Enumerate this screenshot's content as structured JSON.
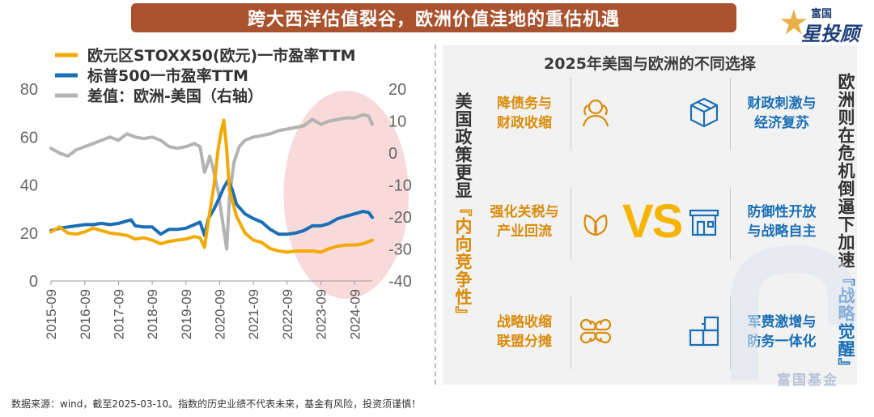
{
  "header": {
    "title": "跨大西洋估值裂谷，欧洲价值洼地的重估机遇"
  },
  "logo": {
    "line1": "富国",
    "line2": "星投顾"
  },
  "chart_data": {
    "type": "line",
    "x_ticks": [
      "2015-09",
      "2016-09",
      "2017-09",
      "2018-09",
      "2019-09",
      "2020-09",
      "2021-09",
      "2022-09",
      "2023-09",
      "2024-09"
    ],
    "x_range": [
      "2015-09-01",
      "2025-03-10"
    ],
    "y_left": {
      "ylim": [
        0,
        80
      ],
      "ticks": [
        0,
        20,
        40,
        60,
        80
      ]
    },
    "y_right": {
      "ylim": [
        -40,
        20
      ],
      "ticks": [
        -40,
        -30,
        -20,
        -10,
        0,
        10,
        20
      ]
    },
    "legend_position": "top-left",
    "grid": false,
    "series": [
      {
        "name": "欧元区STOXX50(欧元)一市盈率TTM",
        "axis": "left",
        "color": "#f4a900",
        "points": [
          [
            "2015-09-01",
            20.5
          ],
          [
            "2015-12-01",
            22.5
          ],
          [
            "2016-03-01",
            20
          ],
          [
            "2016-06-01",
            19.5
          ],
          [
            "2016-09-01",
            20.5
          ],
          [
            "2016-12-01",
            22
          ],
          [
            "2017-03-01",
            21
          ],
          [
            "2017-06-01",
            20
          ],
          [
            "2017-09-01",
            19.5
          ],
          [
            "2017-12-01",
            19
          ],
          [
            "2018-03-01",
            17.5
          ],
          [
            "2018-06-01",
            18
          ],
          [
            "2018-09-01",
            17
          ],
          [
            "2018-12-01",
            15.5
          ],
          [
            "2019-03-01",
            16.5
          ],
          [
            "2019-06-01",
            17
          ],
          [
            "2019-09-01",
            17.5
          ],
          [
            "2019-12-01",
            18.5
          ],
          [
            "2020-02-01",
            18
          ],
          [
            "2020-03-20",
            14
          ],
          [
            "2020-05-01",
            25
          ],
          [
            "2020-07-01",
            40
          ],
          [
            "2020-08-15",
            55
          ],
          [
            "2020-09-15",
            62
          ],
          [
            "2020-10-15",
            67
          ],
          [
            "2020-11-15",
            55
          ],
          [
            "2020-12-15",
            38
          ],
          [
            "2021-03-01",
            27
          ],
          [
            "2021-06-01",
            20
          ],
          [
            "2021-09-01",
            17
          ],
          [
            "2021-12-01",
            16
          ],
          [
            "2022-03-01",
            13.5
          ],
          [
            "2022-06-01",
            12.5
          ],
          [
            "2022-09-01",
            12
          ],
          [
            "2022-12-01",
            12.5
          ],
          [
            "2023-03-01",
            12.5
          ],
          [
            "2023-06-01",
            12.5
          ],
          [
            "2023-09-01",
            12
          ],
          [
            "2023-12-01",
            13.5
          ],
          [
            "2024-03-01",
            14.5
          ],
          [
            "2024-06-01",
            15
          ],
          [
            "2024-09-01",
            15
          ],
          [
            "2024-12-01",
            15.5
          ],
          [
            "2025-03-10",
            17
          ]
        ]
      },
      {
        "name": "标普500一市盈率TTM",
        "axis": "left",
        "color": "#1a6fb6",
        "points": [
          [
            "2015-09-01",
            21
          ],
          [
            "2015-12-01",
            22
          ],
          [
            "2016-03-01",
            22.5
          ],
          [
            "2016-06-01",
            23
          ],
          [
            "2016-09-01",
            23.5
          ],
          [
            "2016-12-01",
            23.5
          ],
          [
            "2017-03-01",
            24
          ],
          [
            "2017-06-01",
            23.5
          ],
          [
            "2017-09-01",
            24
          ],
          [
            "2017-12-01",
            25
          ],
          [
            "2018-01-15",
            25.5
          ],
          [
            "2018-03-01",
            23
          ],
          [
            "2018-06-01",
            22.5
          ],
          [
            "2018-09-01",
            22.5
          ],
          [
            "2018-12-01",
            19.5
          ],
          [
            "2019-03-01",
            21.5
          ],
          [
            "2019-06-01",
            21.5
          ],
          [
            "2019-09-01",
            22
          ],
          [
            "2019-12-01",
            23.5
          ],
          [
            "2020-02-01",
            24.5
          ],
          [
            "2020-03-20",
            19
          ],
          [
            "2020-05-01",
            26
          ],
          [
            "2020-07-01",
            30
          ],
          [
            "2020-09-01",
            35
          ],
          [
            "2020-10-15",
            39
          ],
          [
            "2020-12-01",
            42
          ],
          [
            "2021-01-15",
            38
          ],
          [
            "2021-03-01",
            32
          ],
          [
            "2021-06-01",
            28
          ],
          [
            "2021-09-01",
            26
          ],
          [
            "2021-12-01",
            24.5
          ],
          [
            "2022-03-01",
            21.5
          ],
          [
            "2022-06-01",
            19.5
          ],
          [
            "2022-09-01",
            19.5
          ],
          [
            "2022-12-01",
            20
          ],
          [
            "2023-03-01",
            21
          ],
          [
            "2023-06-01",
            23
          ],
          [
            "2023-09-01",
            23
          ],
          [
            "2023-12-01",
            24
          ],
          [
            "2024-03-01",
            26
          ],
          [
            "2024-06-01",
            27
          ],
          [
            "2024-09-01",
            28
          ],
          [
            "2024-12-01",
            29
          ],
          [
            "2025-02-01",
            28.5
          ],
          [
            "2025-03-10",
            26.5
          ]
        ]
      },
      {
        "name": "差值：欧洲-美国（右轴）",
        "axis": "right",
        "color": "#b3b3b3",
        "points": [
          [
            "2015-09-01",
            1.5
          ],
          [
            "2015-12-01",
            0
          ],
          [
            "2016-03-01",
            -1
          ],
          [
            "2016-06-01",
            1
          ],
          [
            "2016-09-01",
            2
          ],
          [
            "2016-12-01",
            3
          ],
          [
            "2017-03-01",
            4
          ],
          [
            "2017-06-01",
            5
          ],
          [
            "2017-09-01",
            4
          ],
          [
            "2017-12-01",
            6
          ],
          [
            "2018-03-01",
            5
          ],
          [
            "2018-06-01",
            4.5
          ],
          [
            "2018-09-01",
            5
          ],
          [
            "2018-12-01",
            4
          ],
          [
            "2019-03-01",
            2
          ],
          [
            "2019-06-01",
            1.5
          ],
          [
            "2019-09-01",
            2
          ],
          [
            "2019-12-01",
            3
          ],
          [
            "2020-02-01",
            2
          ],
          [
            "2020-03-20",
            -6
          ],
          [
            "2020-04-15",
            -4
          ],
          [
            "2020-05-15",
            -1
          ],
          [
            "2020-06-15",
            -4
          ],
          [
            "2020-07-15",
            -8
          ],
          [
            "2020-08-15",
            -12
          ],
          [
            "2020-09-15",
            -18
          ],
          [
            "2020-10-15",
            -24
          ],
          [
            "2020-11-15",
            -30
          ],
          [
            "2020-12-15",
            -14
          ],
          [
            "2021-02-01",
            -3
          ],
          [
            "2021-04-01",
            2
          ],
          [
            "2021-06-01",
            4
          ],
          [
            "2021-09-01",
            5
          ],
          [
            "2021-12-01",
            5.5
          ],
          [
            "2022-03-01",
            6
          ],
          [
            "2022-06-01",
            7
          ],
          [
            "2022-09-01",
            7.5
          ],
          [
            "2022-12-01",
            8
          ],
          [
            "2023-03-01",
            8.5
          ],
          [
            "2023-06-01",
            10.5
          ],
          [
            "2023-09-01",
            9
          ],
          [
            "2023-12-01",
            10
          ],
          [
            "2024-03-01",
            10.5
          ],
          [
            "2024-06-01",
            11
          ],
          [
            "2024-09-01",
            11
          ],
          [
            "2024-12-01",
            12
          ],
          [
            "2025-02-01",
            11.5
          ],
          [
            "2025-03-10",
            9
          ]
        ]
      }
    ],
    "annotation": {
      "type": "highlight-ellipse",
      "x_range": [
        "2023-07-01",
        "2025-03-10"
      ],
      "color": "#f7d4d4"
    }
  },
  "panel": {
    "title": "2025年美国与欧洲的不同选择",
    "us_caption_main": "美国政策更显",
    "us_caption_emph": "『内向竞争性』",
    "eu_caption_main": "欧洲则在危机倒逼下加速",
    "eu_caption_emph": "『战略觉醒』",
    "vs_text": "VS",
    "us_items": [
      {
        "line1": "降债务与",
        "line2": "财政收缩",
        "icon": "people-icon"
      },
      {
        "line1": "强化关税与",
        "line2": "产业回流",
        "icon": "leaf-icon"
      },
      {
        "line1": "战略收缩",
        "line2": "联盟分摊",
        "icon": "clover-icon"
      }
    ],
    "eu_items": [
      {
        "line1": "财政刺激与",
        "line2": "经济复苏",
        "icon": "box-icon"
      },
      {
        "line1": "防御性开放",
        "line2": "与战略自主",
        "icon": "store-icon"
      },
      {
        "line1": "军费激增与",
        "line2": "防务一体化",
        "icon": "blocks-icon"
      }
    ],
    "colors": {
      "us": "#d98b0a",
      "eu": "#1a6fb6",
      "vs": "#f4b400"
    }
  },
  "watermark": {
    "text": "富国基金"
  },
  "footer": {
    "source": "数据来源：wind，截至2025-03-10。指数的历史业绩不代表未来，基金有风险，投资须谨慎！"
  }
}
